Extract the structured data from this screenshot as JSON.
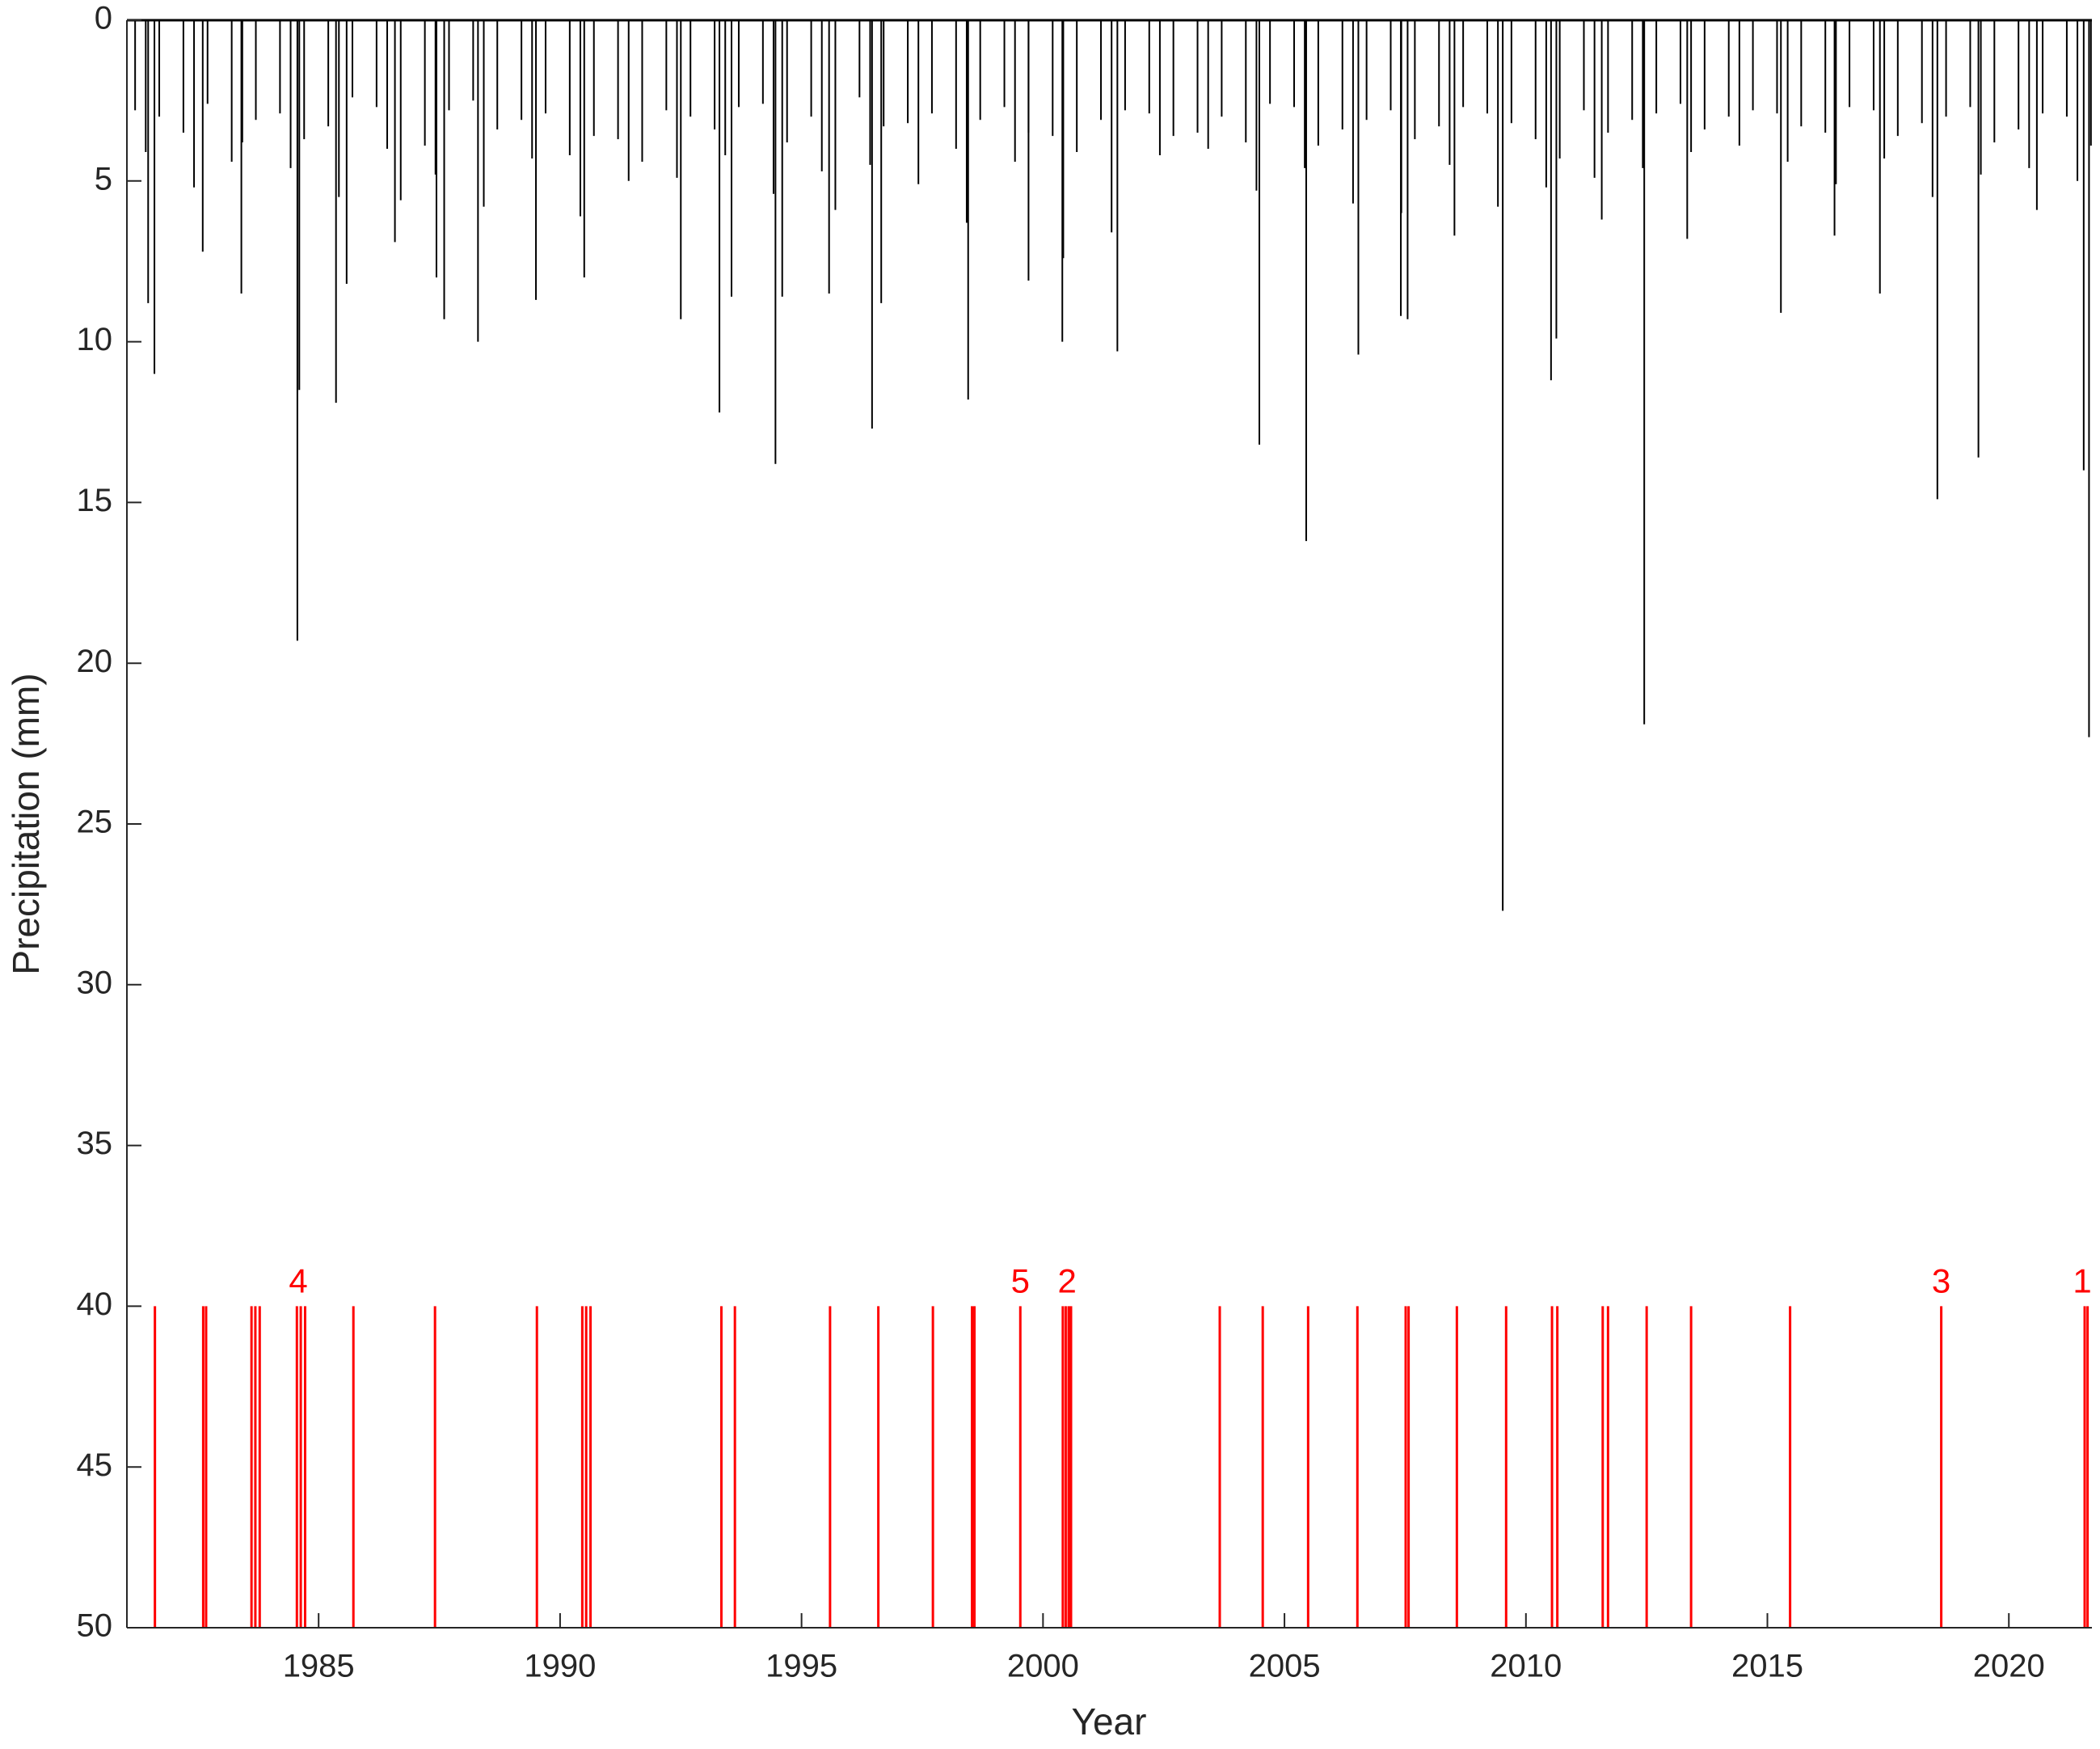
{
  "chart_data": {
    "type": "stem",
    "x_label": "Year",
    "y_label": "Precipitation (mm)",
    "xlim": [
      1981.03,
      2021.72
    ],
    "ylim": [
      0,
      50
    ],
    "y_reversed": true,
    "xticks": [
      1985,
      1990,
      1995,
      2000,
      2005,
      2010,
      2015,
      2020
    ],
    "yticks": [
      0,
      5,
      10,
      15,
      20,
      25,
      30,
      35,
      40,
      45,
      50
    ],
    "grid": false,
    "series": [
      {
        "color": "#000000",
        "x": [
          1981.47,
          1981.6,
          1982.6,
          1983.4,
          1984.56,
          1984.6,
          1985.36,
          1985.58,
          1986.58,
          1987.44,
          1987.6,
          1988.3,
          1989.5,
          1990.5,
          1992.5,
          1993.3,
          1993.55,
          1994.46,
          1994.6,
          1995.57,
          1996.46,
          1996.65,
          1998.45,
          1999.7,
          2000.4,
          2001.54,
          2004.48,
          2005.45,
          2006.53,
          2007.41,
          2007.55,
          2008.52,
          2009.52,
          2010.52,
          2010.63,
          2011.57,
          2012.45,
          2013.34,
          2015.28,
          2016.39,
          2017.33,
          2018.52,
          2019.37,
          2020.58,
          2021.55,
          2021.66,
          1981.2,
          1981.42,
          1981.7,
          1982.2,
          1982.42,
          1982.7,
          1983.2,
          1983.42,
          1983.7,
          1984.2,
          1984.42,
          1984.7,
          1985.2,
          1985.42,
          1985.7,
          1986.2,
          1986.42,
          1986.7,
          1987.2,
          1987.42,
          1987.7,
          1988.2,
          1988.42,
          1988.7,
          1989.2,
          1989.42,
          1989.7,
          1990.2,
          1990.42,
          1990.7,
          1991.2,
          1991.42,
          1991.7,
          1992.2,
          1992.42,
          1992.7,
          1993.2,
          1993.42,
          1993.7,
          1994.2,
          1994.42,
          1994.7,
          1995.2,
          1995.42,
          1995.7,
          1996.2,
          1996.42,
          1996.7,
          1997.2,
          1997.42,
          1997.7,
          1998.2,
          1998.42,
          1998.7,
          1999.2,
          1999.42,
          1999.7,
          2000.2,
          2000.42,
          2000.7,
          2001.2,
          2001.42,
          2001.7,
          2002.2,
          2002.42,
          2002.7,
          2003.2,
          2003.42,
          2003.7,
          2004.2,
          2004.42,
          2004.7,
          2005.2,
          2005.42,
          2005.7,
          2006.2,
          2006.42,
          2006.7,
          2007.2,
          2007.42,
          2007.7,
          2008.2,
          2008.42,
          2008.7,
          2009.2,
          2009.42,
          2009.7,
          2010.2,
          2010.42,
          2010.7,
          2011.2,
          2011.42,
          2011.7,
          2012.2,
          2012.42,
          2012.7,
          2013.2,
          2013.42,
          2013.7,
          2014.2,
          2014.42,
          2014.7,
          2015.2,
          2015.42,
          2015.7,
          2016.2,
          2016.42,
          2016.7,
          2017.2,
          2017.42,
          2017.7,
          2018.2,
          2018.42,
          2018.7,
          2019.2,
          2019.42,
          2019.7,
          2020.2,
          2020.42,
          2020.7,
          2021.2,
          2021.42,
          2021.7
        ],
        "values": [
          8.8,
          11,
          7.2,
          8.5,
          19.3,
          11.5,
          11.9,
          8.2,
          6.9,
          8,
          9.3,
          10,
          8.7,
          8,
          9.3,
          12.2,
          8.6,
          13.8,
          8.6,
          8.5,
          12.7,
          8.8,
          11.8,
          8.1,
          10,
          10.3,
          13.2,
          16.2,
          10.4,
          9.2,
          9.3,
          6.7,
          27.7,
          11.2,
          9.9,
          6.2,
          21.9,
          6.8,
          9.1,
          6.7,
          8.5,
          14.9,
          13.6,
          5.9,
          14,
          22.3,
          2.8,
          4.1,
          3.0,
          3.5,
          5.2,
          2.6,
          4.4,
          3.8,
          3.1,
          2.9,
          4.6,
          3.7,
          3.3,
          5.5,
          2.4,
          2.7,
          4.0,
          5.6,
          3.9,
          4.8,
          2.8,
          2.5,
          5.8,
          3.4,
          3.1,
          4.3,
          2.9,
          4.2,
          6.1,
          3.6,
          3.7,
          5.0,
          4.4,
          2.8,
          4.9,
          3.0,
          3.4,
          4.2,
          2.7,
          2.6,
          5.4,
          3.8,
          3.0,
          4.7,
          5.9,
          2.4,
          4.5,
          3.3,
          3.2,
          5.1,
          2.9,
          4.0,
          6.3,
          3.1,
          2.7,
          4.4,
          3.5,
          3.6,
          7.4,
          4.1,
          3.1,
          6.6,
          2.8,
          2.9,
          4.2,
          3.6,
          3.5,
          4.0,
          3.0,
          3.8,
          5.3,
          2.6,
          2.7,
          4.6,
          3.9,
          3.4,
          5.7,
          3.1,
          2.8,
          6.0,
          3.7,
          3.3,
          4.5,
          2.7,
          2.9,
          5.8,
          3.2,
          3.7,
          5.2,
          4.3,
          2.8,
          4.9,
          3.5,
          3.1,
          4.6,
          2.9,
          2.6,
          4.1,
          3.4,
          3.0,
          3.9,
          2.8,
          2.9,
          4.4,
          3.3,
          3.5,
          5.1,
          2.7,
          2.8,
          4.3,
          3.6,
          3.2,
          5.5,
          3.0,
          2.7,
          4.8,
          3.8,
          3.4,
          4.6,
          2.9,
          3.0,
          5.0,
          3.9
        ]
      }
    ],
    "events": {
      "color": "#ff0000",
      "band": [
        40,
        50
      ],
      "x": [
        1981.61,
        1982.61,
        1982.67,
        1983.61,
        1983.69,
        1983.78,
        1984.55,
        1984.63,
        1984.72,
        1985.72,
        1987.41,
        1989.52,
        1990.46,
        1990.54,
        1990.63,
        1993.34,
        1993.62,
        1995.59,
        1996.59,
        1997.72,
        1998.53,
        1998.58,
        1999.53,
        2000.41,
        2000.47,
        2000.53,
        2000.58,
        2003.66,
        2004.55,
        2005.49,
        2006.51,
        2007.51,
        2007.57,
        2008.57,
        2009.59,
        2010.54,
        2010.65,
        2011.59,
        2011.7,
        2012.5,
        2013.42,
        2015.47,
        2018.6,
        2021.57,
        2021.63
      ]
    },
    "annotations": [
      {
        "text": "4",
        "x": 1984.58
      },
      {
        "text": "5",
        "x": 1999.53
      },
      {
        "text": "2",
        "x": 2000.5
      },
      {
        "text": "3",
        "x": 2018.6
      },
      {
        "text": "1",
        "x": 2021.52
      }
    ]
  }
}
